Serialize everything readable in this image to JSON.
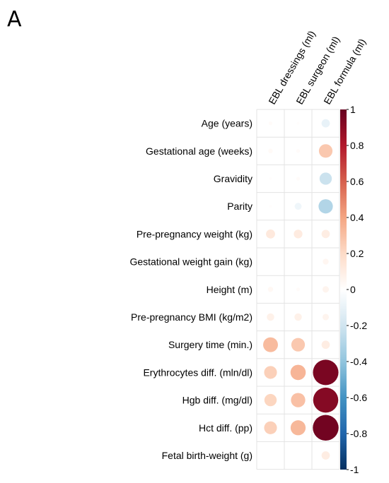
{
  "panel_label": "A",
  "chart_data": {
    "type": "heatmap",
    "style": "correlation circle matrix",
    "rows": [
      "Age (years)",
      "Gestational age (weeks)",
      "Gravidity",
      "Parity",
      "Pre-pregnancy weight (kg)",
      "Gestational weight gain (kg)",
      "Height (m)",
      "Pre-pregnancy BMI (kg/m2)",
      "Surgery time (min.)",
      "Erythrocytes diff. (mln/dl)",
      "Hgb diff. (mg/dl)",
      "Hct diff. (pp)",
      "Fetal birth-weight (g)"
    ],
    "columns": [
      "EBL dressings (ml)",
      "EBL surgeon (ml)",
      "EBL formula (ml)"
    ],
    "values": [
      [
        0.02,
        0.01,
        -0.1
      ],
      [
        0.03,
        0.02,
        0.27
      ],
      [
        0.01,
        0.02,
        -0.22
      ],
      [
        0.01,
        -0.07,
        -0.3
      ],
      [
        0.12,
        0.11,
        0.1
      ],
      [
        0.0,
        0.0,
        0.05
      ],
      [
        0.04,
        0.02,
        0.06
      ],
      [
        0.08,
        0.08,
        0.06
      ],
      [
        0.32,
        0.27,
        0.1
      ],
      [
        0.24,
        0.34,
        0.95
      ],
      [
        0.22,
        0.3,
        0.92
      ],
      [
        0.24,
        0.33,
        0.97
      ],
      [
        0.0,
        0.0,
        0.1
      ]
    ],
    "colorbar": {
      "range": [
        -1,
        1
      ],
      "ticks": [
        "1",
        "0.8",
        "0.6",
        "0.4",
        "0.2",
        "0",
        "-0.2",
        "-0.4",
        "-0.6",
        "-0.8",
        "-1"
      ],
      "tick_values": [
        1,
        0.8,
        0.6,
        0.4,
        0.2,
        0,
        -0.2,
        -0.4,
        -0.6,
        -0.8,
        -1
      ],
      "colors": [
        "#67001F",
        "#B2182B",
        "#D6604D",
        "#F4A582",
        "#FDDBC7",
        "#FFFFFF",
        "#D1E5F0",
        "#92C5DE",
        "#4393C3",
        "#2166AC",
        "#053061"
      ]
    }
  }
}
